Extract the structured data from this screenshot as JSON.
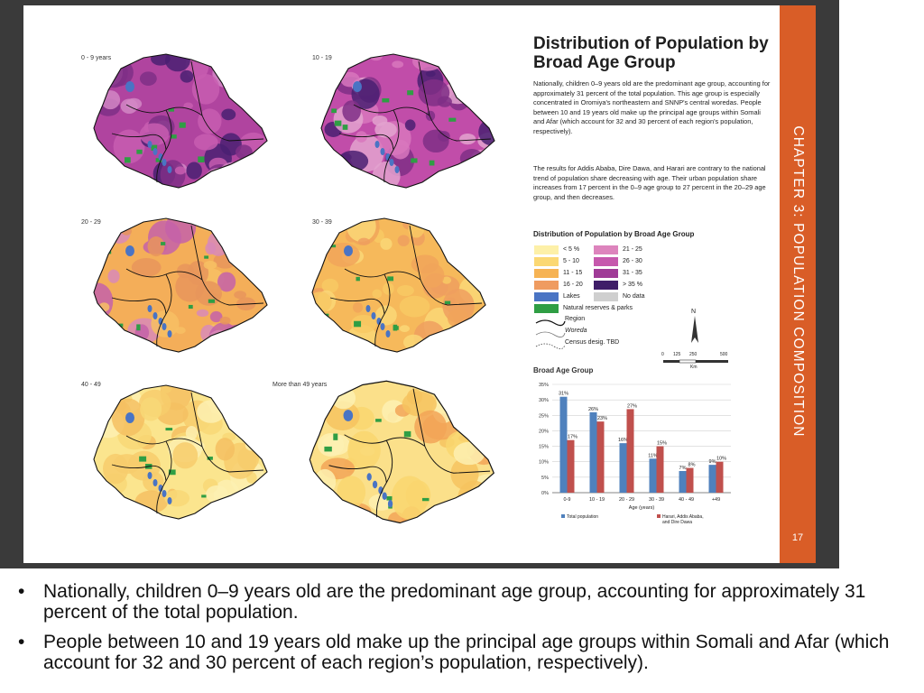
{
  "chapter_label": "CHAPTER 3: POPULATION COMPOSITION",
  "page_number": "17",
  "heading": "Distribution of Population by Broad Age Group",
  "paragraphs": [
    "Nationally, children 0–9 years old are the predominant age group, accounting for approximately 31 percent of the total population. This age group is especially concentrated in Oromiya's northeastern and SNNP's central woredas. People between 10 and 19 years old make up the principal age groups within Somali and Afar (which account for 32 and 30 percent of each region's population, respectively).",
    "The results for Addis Ababa, Dire Dawa, and Harari are contrary to the national trend of population share decreasing with age. Their urban population share increases from 17 percent in the 0–9 age group to 27 percent in the 20–29 age group, and then decreases."
  ],
  "maps": [
    {
      "label": "0 - 9 years",
      "base": "#b0449f",
      "patch": [
        "#4a2072",
        "#c85db0",
        "#7f2f86",
        "#d287c4"
      ]
    },
    {
      "label": "10 - 19",
      "base": "#c14da9",
      "patch": [
        "#d877bd",
        "#7f2f86",
        "#4a2072",
        "#e3a3cf"
      ]
    },
    {
      "label": "20 - 29",
      "base": "#f4ae59",
      "patch": [
        "#e8955c",
        "#f7c064",
        "#d88ab8",
        "#c462a9"
      ]
    },
    {
      "label": "30 - 39",
      "base": "#f6b95b",
      "patch": [
        "#f8c964",
        "#f1a45a",
        "#fad777",
        "#ee9f5f"
      ]
    },
    {
      "label": "40 - 49",
      "base": "#fbe58e",
      "patch": [
        "#f8d877",
        "#fdf0b1",
        "#f7cd6c",
        "#f5c062"
      ]
    },
    {
      "label": "More than 49 years",
      "base": "#fbe08a",
      "patch": [
        "#f6c35f",
        "#fdf0b1",
        "#f2a457",
        "#f9d66f"
      ]
    }
  ],
  "legend": {
    "title": "Distribution of Population by Broad Age Group",
    "items": [
      {
        "label": "< 5 %",
        "color": "#fdf0a8"
      },
      {
        "label": "21 - 25",
        "color": "#dd84bd"
      },
      {
        "label": "5 - 10",
        "color": "#fbd873"
      },
      {
        "label": "26 - 30",
        "color": "#c658ad"
      },
      {
        "label": "11 - 15",
        "color": "#f6b354"
      },
      {
        "label": "31 - 35",
        "color": "#a03b97"
      },
      {
        "label": "16 - 20",
        "color": "#ef9b60"
      },
      {
        "label": "> 35 %",
        "color": "#3f1e68"
      },
      {
        "label": "Lakes",
        "color": "#4a74c4"
      },
      {
        "label": "No data",
        "color": "#cfcfcf"
      },
      {
        "label": "Natural reserves & parks",
        "color": "#2f9e44"
      }
    ],
    "line_items": [
      "Region",
      "Woreda",
      "Census desig. TBD"
    ],
    "north": "N",
    "scale_ticks": [
      "0",
      "125",
      "250",
      "500"
    ],
    "scale_unit": "Km"
  },
  "chart_data": {
    "type": "bar",
    "title": "Broad Age Group",
    "categories": [
      "0-9",
      "10 - 19",
      "20 - 29",
      "30 - 39",
      "40 - 49",
      "+49"
    ],
    "xlabel": "Age (years)",
    "ylabel": "",
    "ylim": [
      0,
      35
    ],
    "yticks": [
      "0%",
      "5%",
      "10%",
      "15%",
      "20%",
      "25%",
      "30%",
      "35%"
    ],
    "series": [
      {
        "name": "Total population",
        "color": "#4f81bd",
        "values": [
          31,
          26,
          16,
          11,
          7,
          9
        ],
        "labels": [
          "31%",
          "26%",
          "16%",
          "11%",
          "7%",
          "9%"
        ]
      },
      {
        "name": "Harari, Addis Ababa, and Dire Dawa",
        "color": "#c0504d",
        "values": [
          17,
          23,
          27,
          15,
          8,
          10
        ],
        "labels": [
          "17%",
          "23%",
          "27%",
          "15%",
          "8%",
          "10%"
        ]
      }
    ],
    "grid": true,
    "legend": "bottom"
  },
  "bullets": [
    "Nationally, children 0–9 years old are the predominant age group, accounting for approximately 31 percent of the total population.",
    "People between 10 and 19 years old make up the principal age groups within Somali and Afar (which account for 32 and 30 percent of each region’s population, respectively)."
  ],
  "bullet_marker": "•"
}
